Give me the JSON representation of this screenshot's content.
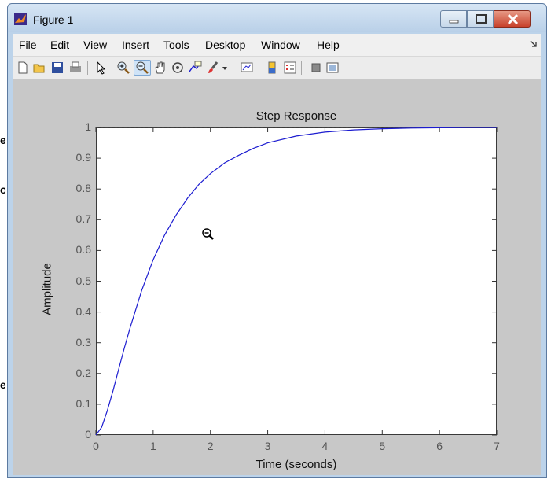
{
  "window": {
    "title": "Figure 1"
  },
  "menu": [
    "File",
    "Edit",
    "View",
    "Insert",
    "Tools",
    "Desktop",
    "Window",
    "Help"
  ],
  "toolbar": {
    "icons": [
      "new-figure-icon",
      "open-file-icon",
      "save-figure-icon",
      "print-figure-icon",
      "edit-plot-icon",
      "zoom-in-icon",
      "zoom-out-icon",
      "pan-icon",
      "rotate-3d-icon",
      "data-cursor-icon",
      "brush-icon",
      "link-plot-icon",
      "insert-colorbar-icon",
      "insert-legend-icon",
      "hide-plot-tools-icon",
      "show-plot-tools-icon"
    ],
    "selected": "zoom-out-icon"
  },
  "background_text": [
    "e",
    "o",
    "e"
  ],
  "colors": {
    "curve": "#1c1cd0",
    "axes_bg": "#ffffff",
    "figure_bg": "#c8c8c8",
    "close_button": "#c8412b"
  },
  "chart_data": {
    "type": "line",
    "title": "Step Response",
    "xlabel": "Time (seconds)",
    "ylabel": "Amplitude",
    "xlim": [
      0,
      7
    ],
    "ylim": [
      0,
      1
    ],
    "x_ticks": [
      "0",
      "1",
      "2",
      "3",
      "4",
      "5",
      "6",
      "7"
    ],
    "y_ticks": [
      "0",
      "0.1",
      "0.2",
      "0.3",
      "0.4",
      "0.5",
      "0.6",
      "0.7",
      "0.8",
      "0.9",
      "1"
    ],
    "grid": false,
    "reference_line": 1,
    "series": [
      {
        "x": [
          0,
          0.1,
          0.2,
          0.3,
          0.4,
          0.5,
          0.6,
          0.8,
          1.0,
          1.2,
          1.4,
          1.6,
          1.8,
          2.0,
          2.25,
          2.5,
          2.75,
          3.0,
          3.5,
          4.0,
          4.5,
          5.0,
          5.5,
          6.0,
          6.5,
          7.0
        ],
        "values": [
          0,
          0.025,
          0.08,
          0.145,
          0.215,
          0.285,
          0.35,
          0.47,
          0.57,
          0.65,
          0.715,
          0.77,
          0.815,
          0.85,
          0.885,
          0.91,
          0.932,
          0.95,
          0.972,
          0.985,
          0.992,
          0.996,
          0.998,
          0.999,
          1.0,
          1.0
        ]
      }
    ]
  }
}
